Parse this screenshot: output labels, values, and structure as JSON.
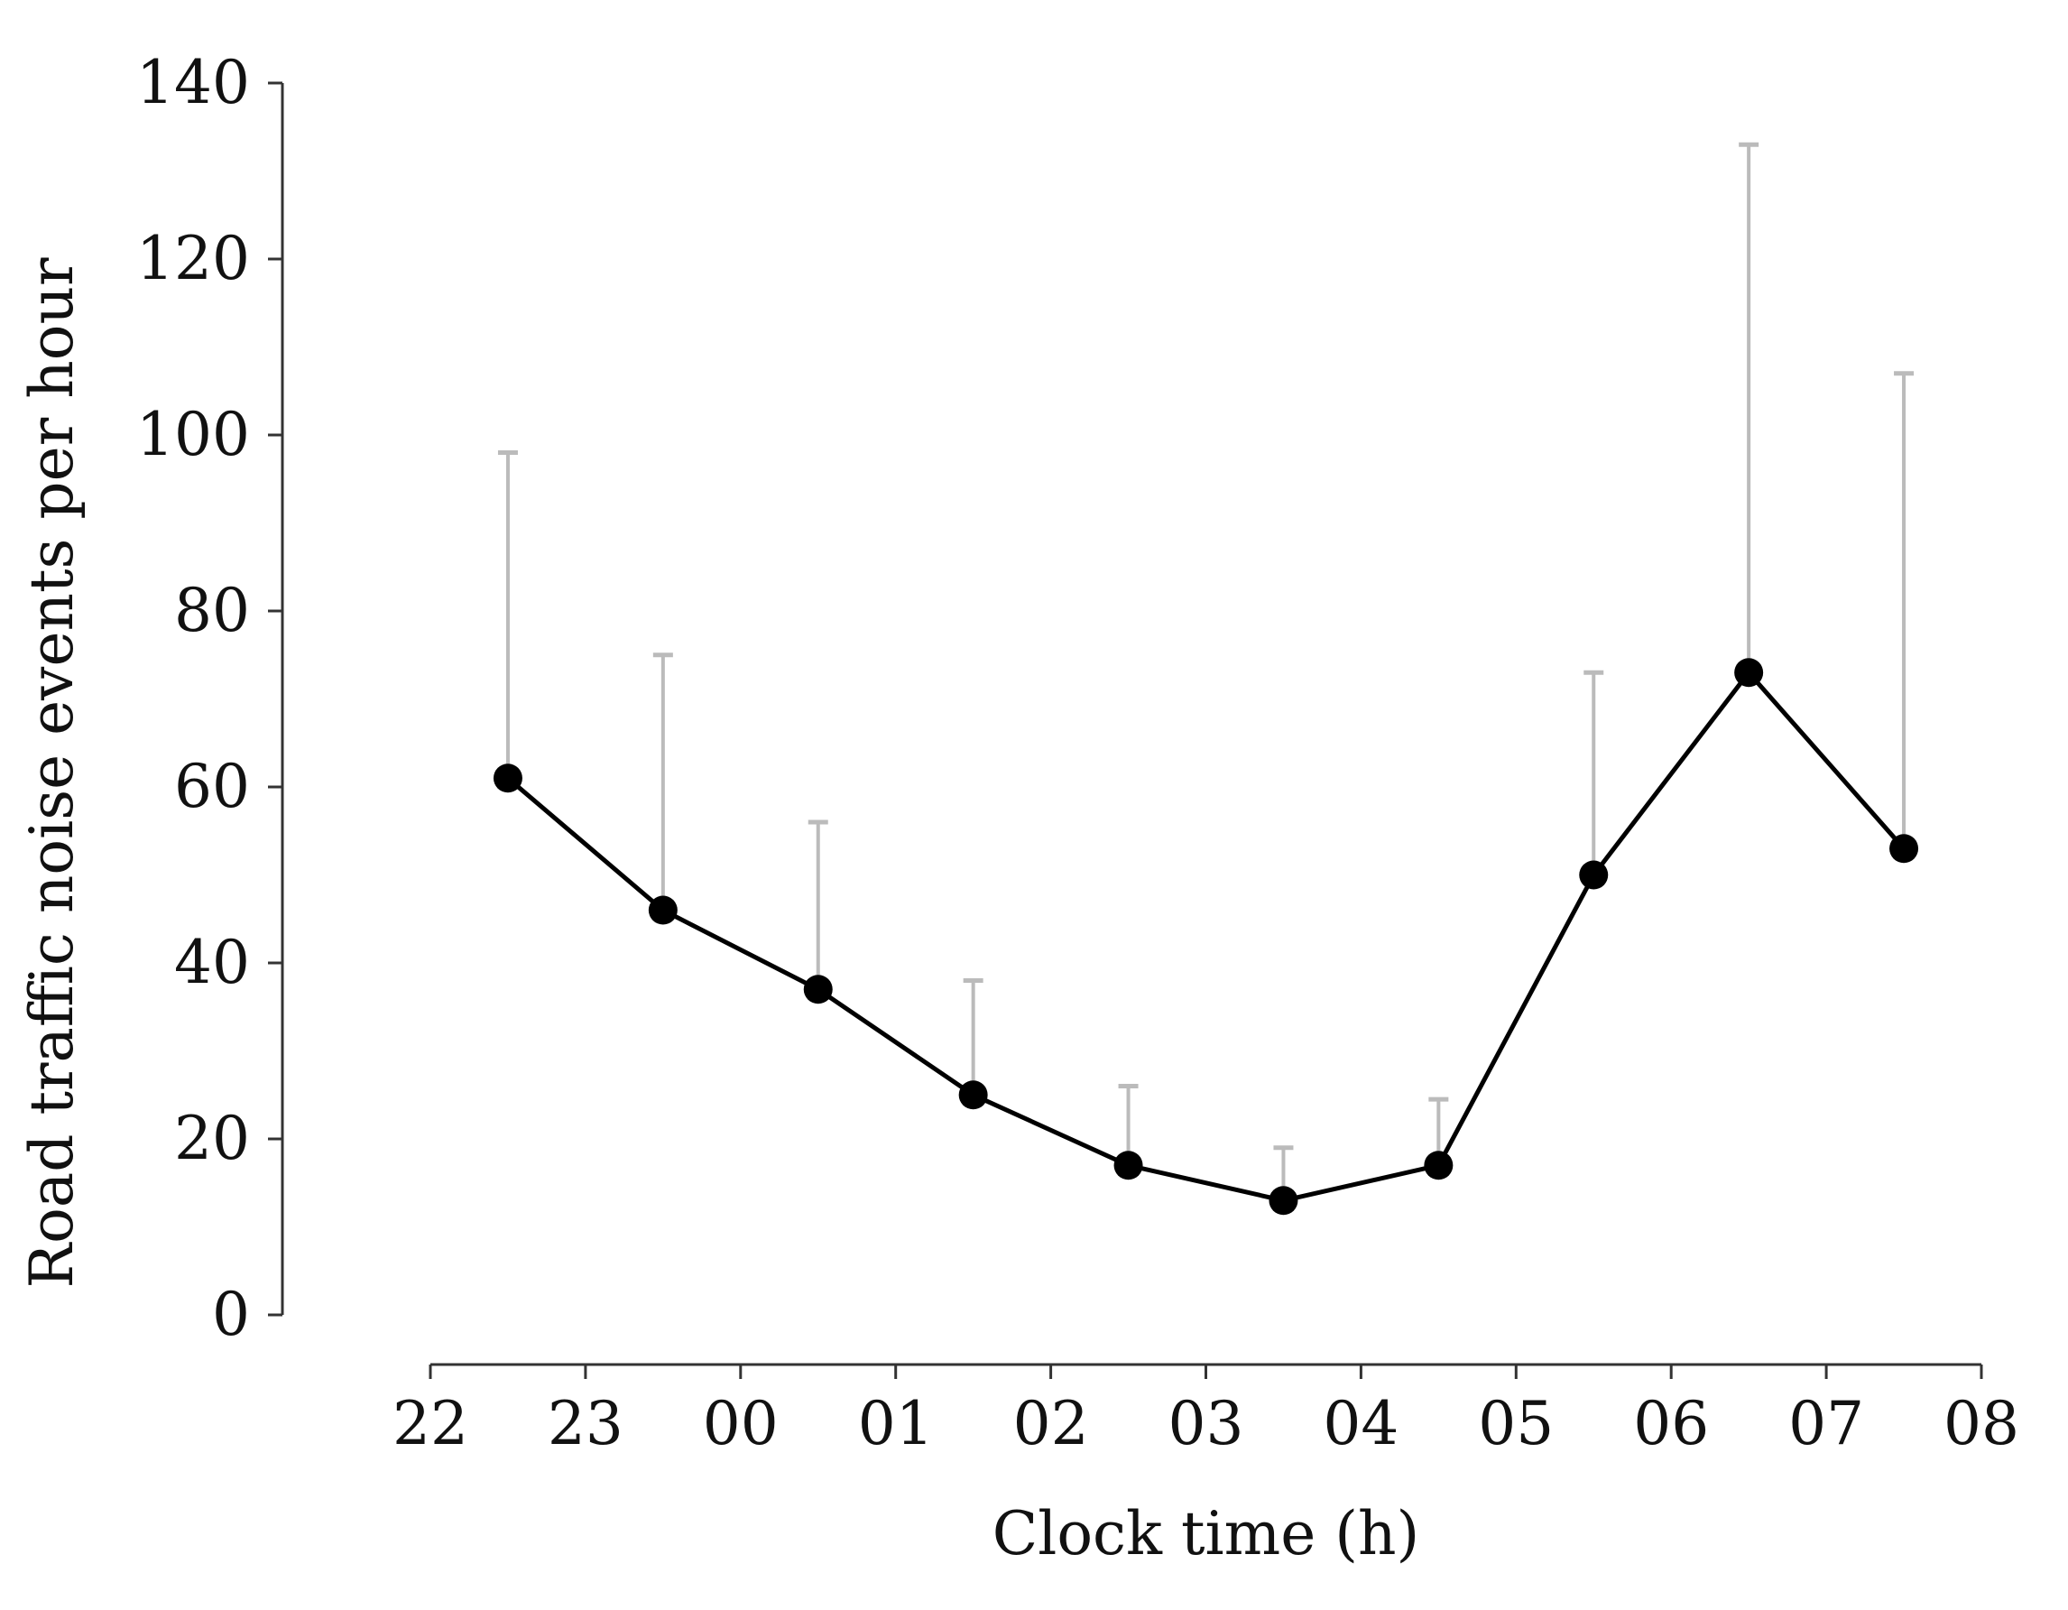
{
  "chart_data": {
    "type": "line",
    "title": "",
    "xlabel": "Clock time (h)",
    "ylabel": "Road traffic noise events per hour",
    "x_tick_labels": [
      "22",
      "23",
      "00",
      "01",
      "02",
      "03",
      "04",
      "05",
      "06",
      "07",
      "08"
    ],
    "y_tick_labels": [
      "0",
      "20",
      "40",
      "60",
      "80",
      "100",
      "120",
      "140"
    ],
    "y_ticks": [
      0,
      20,
      40,
      60,
      80,
      100,
      120,
      140
    ],
    "ylim": [
      0,
      140
    ],
    "x_domain": [
      "22",
      "08"
    ],
    "grid": false,
    "legend": "none",
    "series": [
      {
        "x": [
          "22:30",
          "23:30",
          "00:30",
          "01:30",
          "02:30",
          "03:30",
          "04:30",
          "05:30",
          "06:30",
          "07:30"
        ],
        "values": [
          61,
          46,
          37,
          25,
          17,
          13,
          17,
          50,
          73,
          53
        ],
        "error_upper": [
          98,
          75,
          56,
          38,
          26,
          19,
          24.5,
          73,
          133,
          107
        ]
      }
    ],
    "colors": {
      "line": "#000000",
      "markers": "#000000",
      "error_bars": "#bbbbbb",
      "axes": "#333333"
    }
  }
}
